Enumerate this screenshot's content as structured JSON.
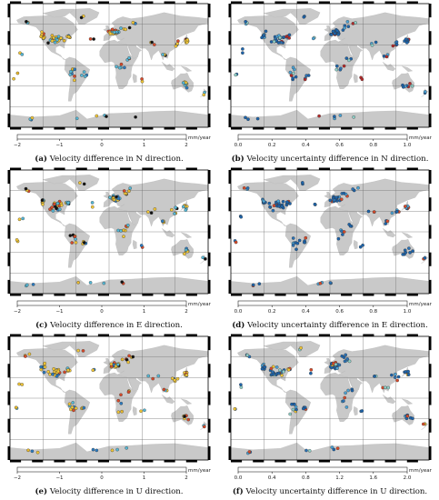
{
  "figure": {
    "panels": [
      {
        "id": "a",
        "letter": "(a)",
        "caption": "Velocity difference in N direction.",
        "colorbar": {
          "ticks": [
            "−2",
            "−1",
            "0",
            "1",
            "2"
          ],
          "unit": "mm/year",
          "colors": [
            "#2b7bc0",
            "#55b8d6",
            "#f2c737",
            "#d84a2a"
          ],
          "range": [
            -2,
            2
          ]
        },
        "palette": [
          "#f2c737",
          "#f2c737",
          "#f2c737",
          "#55b8d6",
          "#55b8d6",
          "#e8b92c",
          "#2b7bc0",
          "#d84a2a",
          "#111111"
        ],
        "seed": 11
      },
      {
        "id": "b",
        "letter": "(b)",
        "caption": "Velocity uncertainty difference in N direction.",
        "colorbar": {
          "ticks": [
            "0.0",
            "0.2",
            "0.4",
            "0.6",
            "0.8",
            "1.0"
          ],
          "unit": "mm/year",
          "colors": [
            "#1c64ac",
            "#4ba3d6",
            "#8fd0c8",
            "#f2c737",
            "#e8a23a",
            "#b52a2a"
          ],
          "range": [
            0,
            1
          ]
        },
        "palette": [
          "#1c64ac",
          "#1c64ac",
          "#1c64ac",
          "#1c64ac",
          "#2a72b6",
          "#4ba3d6",
          "#8fd0c8",
          "#b52a2a"
        ],
        "seed": 23
      },
      {
        "id": "c",
        "letter": "(c)",
        "caption": "Velocity difference in E direction.",
        "colorbar": {
          "ticks": [
            "−2",
            "−1",
            "0",
            "1",
            "2"
          ],
          "unit": "mm/year",
          "colors": [
            "#2b7bc0",
            "#55b8d6",
            "#f2c737",
            "#d84a2a"
          ],
          "range": [
            -2,
            2
          ]
        },
        "palette": [
          "#f2c737",
          "#f2c737",
          "#55b8d6",
          "#55b8d6",
          "#55b8d6",
          "#e8b92c",
          "#2b7bc0",
          "#d84a2a",
          "#111111"
        ],
        "seed": 37
      },
      {
        "id": "d",
        "letter": "(d)",
        "caption": "Velocity uncertainty difference in E direction.",
        "colorbar": {
          "ticks": [
            "0.0",
            "0.2",
            "0.4",
            "0.6",
            "0.8",
            "1.0"
          ],
          "unit": "mm/year",
          "colors": [
            "#1c64ac",
            "#4ba3d6",
            "#8fd0c8",
            "#f2c737",
            "#e8a23a",
            "#b52a2a"
          ],
          "range": [
            0,
            1
          ]
        },
        "palette": [
          "#1c64ac",
          "#1c64ac",
          "#1c64ac",
          "#1c64ac",
          "#1c64ac",
          "#2a72b6",
          "#4ba3d6",
          "#d84a2a"
        ],
        "seed": 41
      },
      {
        "id": "e",
        "letter": "(e)",
        "caption": "Velocity difference in U direction.",
        "colorbar": {
          "ticks": [
            "−2",
            "−1",
            "0",
            "1",
            "2"
          ],
          "unit": "mm/year",
          "colors": [
            "#2b7bc0",
            "#55b8d6",
            "#f2c737",
            "#d84a2a"
          ],
          "range": [
            -2,
            2
          ]
        },
        "palette": [
          "#f2c737",
          "#f2c737",
          "#f2c737",
          "#f2c737",
          "#55b8d6",
          "#e8b92c",
          "#2b7bc0",
          "#d84a2a",
          "#111111"
        ],
        "seed": 53
      },
      {
        "id": "f",
        "letter": "(f)",
        "caption": "Velocity uncertainty difference in U direction.",
        "colorbar": {
          "ticks": [
            "0.0",
            "0.4",
            "0.8",
            "1.2",
            "1.6",
            "2.0"
          ],
          "unit": "mm/year",
          "colors": [
            "#1c64ac",
            "#4ba3d6",
            "#8fd0c8",
            "#f2c737",
            "#e8a23a",
            "#b52a2a"
          ],
          "range": [
            0,
            2
          ]
        },
        "palette": [
          "#1c64ac",
          "#1c64ac",
          "#1c64ac",
          "#2a72b6",
          "#4ba3d6",
          "#8fd0c8",
          "#f2c737",
          "#d84a2a"
        ],
        "seed": 67
      }
    ],
    "colors": {
      "land": "#c9c9c9",
      "ocean": "#ffffff",
      "grid": "#6e6e6e",
      "frame": "#000000",
      "dot_stroke": "#333333"
    }
  }
}
